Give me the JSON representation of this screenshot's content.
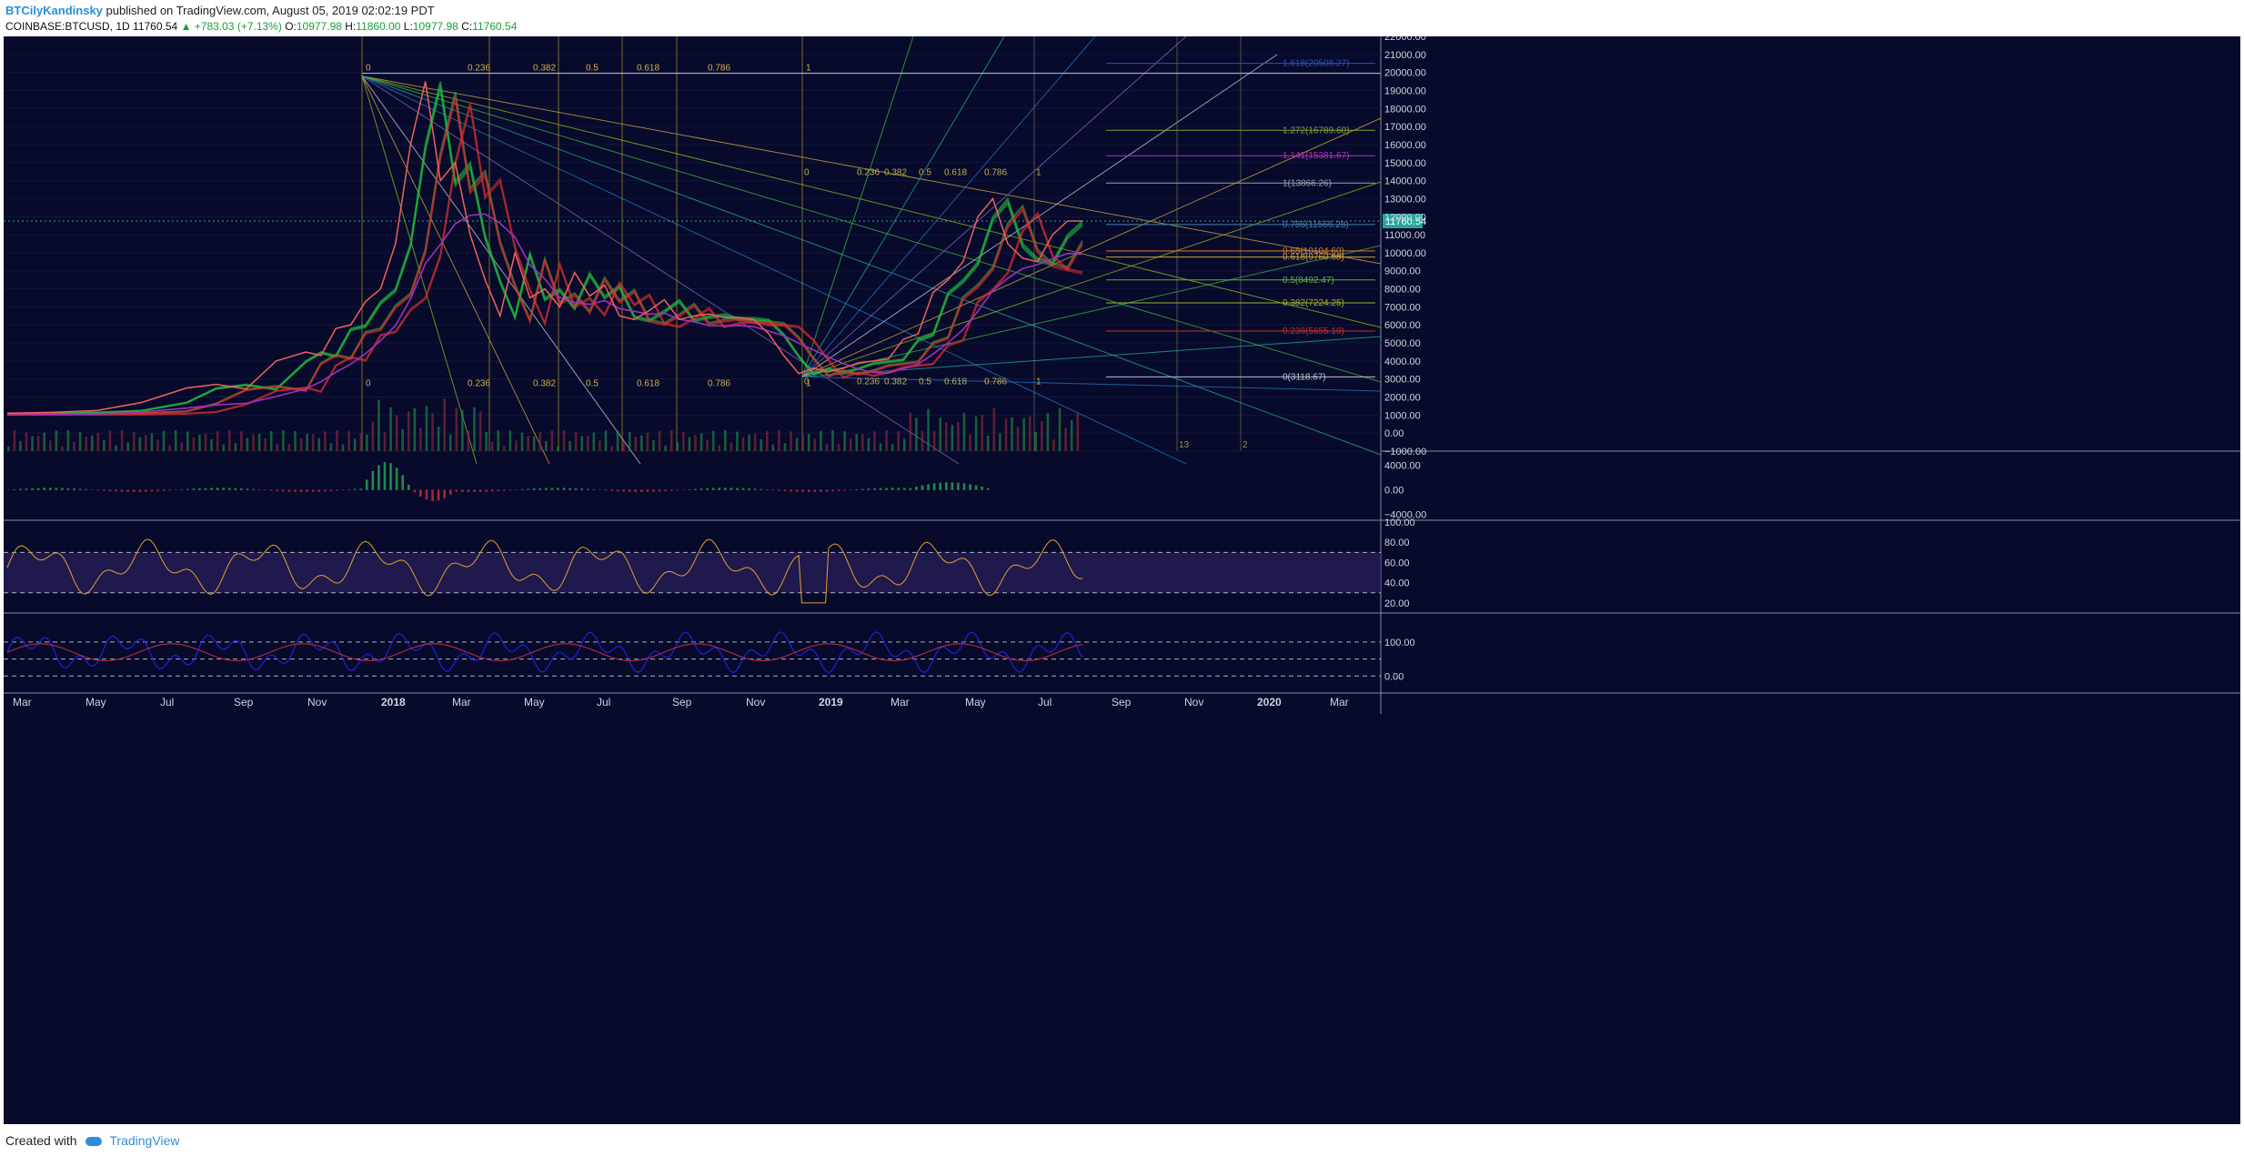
{
  "header": {
    "author": "BTCilyKandinsky",
    "published_text": "published on TradingView.com, August 05, 2019 02:02:19 PDT",
    "symbol": "COINBASE:BTCUSD, 1D",
    "last": "11760.54",
    "change": "▲ +783.03 (+7.13%)",
    "open_label": "O:",
    "open": "10977.98",
    "high_label": "H:",
    "high": "11860.00",
    "low_label": "L:",
    "low": "10977.98",
    "close_label": "C:",
    "close": "11760.54"
  },
  "footer": {
    "created_with": "Created with",
    "brand": "TradingView"
  },
  "colors": {
    "background": "#070a2a",
    "price_tag": "#26a69a",
    "rsi_line": "#e0a030",
    "rsi_band": "#2a1f5c",
    "cci_line": "#2020e0",
    "cci_signal": "#c03040"
  },
  "chart_data": {
    "type": "line",
    "title": "COINBASE:BTCUSD, 1D",
    "x_tick_labels": [
      "Mar",
      "May",
      "Jul",
      "Sep",
      "Nov",
      "2018",
      "Mar",
      "May",
      "Jul",
      "Sep",
      "Nov",
      "2019",
      "Mar",
      "May",
      "Jul",
      "Sep",
      "Nov",
      "2020",
      "Mar"
    ],
    "price_axis_labels": [
      "22000.00",
      "21000.00",
      "20000.00",
      "19000.00",
      "18000.00",
      "17000.00",
      "16000.00",
      "15000.00",
      "14000.00",
      "13000.00",
      "12000.00",
      "11000.00",
      "10000.00",
      "9000.00",
      "8000.00",
      "7000.00",
      "6000.00",
      "5000.00",
      "4000.00",
      "3000.00",
      "2000.00",
      "1000.00",
      "0.00",
      "−1000.00"
    ],
    "ylim": [
      -1000,
      22000
    ],
    "last_price_tag": "11760.54",
    "price_series": {
      "name": "BTCUSD",
      "x_index": [
        0,
        15,
        30,
        45,
        60,
        70,
        80,
        90,
        100,
        105,
        110,
        115,
        120,
        125,
        130,
        135,
        140,
        145,
        150,
        155,
        160,
        165,
        170,
        175,
        180,
        185,
        190,
        195,
        200,
        205,
        210,
        215,
        220,
        225,
        230,
        235,
        240,
        245,
        250,
        255,
        260,
        265,
        270,
        275,
        280,
        285,
        290,
        295,
        300,
        305,
        310,
        315,
        320,
        325,
        330,
        335,
        340,
        345,
        350,
        355,
        360
      ],
      "values": [
        1100,
        1150,
        1250,
        1700,
        2500,
        2700,
        2450,
        4000,
        4500,
        4300,
        5800,
        6000,
        7300,
        8000,
        10500,
        16000,
        19500,
        14000,
        15000,
        11000,
        8500,
        6500,
        10000,
        7500,
        8000,
        7000,
        8900,
        7600,
        8200,
        6500,
        6300,
        6800,
        7400,
        6300,
        6500,
        6600,
        6400,
        6400,
        6300,
        5500,
        4300,
        3300,
        3600,
        3400,
        3600,
        3900,
        4000,
        4100,
        5200,
        5500,
        7800,
        8500,
        9500,
        12000,
        13000,
        10500,
        9700,
        9500,
        11000,
        11760,
        11760
      ],
      "volume_note": "daily volume histogram"
    },
    "fib_levels_right": [
      {
        "label": "1.618(20508.27)",
        "value": 20508.27
      },
      {
        "label": "1.272(16789.60)",
        "value": 16789.6
      },
      {
        "label": "1.141(15381.67)",
        "value": 15381.67
      },
      {
        "label": "1(13866.26)",
        "value": 13866.26
      },
      {
        "label": "0.786(11566.28)",
        "value": 11566.28
      },
      {
        "label": "0.65(10104.60)",
        "value": 10104.6
      },
      {
        "label": "0.618(9760.68)",
        "value": 9760.68
      },
      {
        "label": "0.5(8492.47)",
        "value": 8492.47
      },
      {
        "label": "0.382(7224.25)",
        "value": 7224.25
      },
      {
        "label": "0.236(5655.10)",
        "value": 5655.1
      },
      {
        "label": "0(3118.67)",
        "value": 3118.67
      }
    ],
    "fib_time_labels": [
      "0",
      "0.236",
      "0.382",
      "0.5",
      "0.618",
      "0.786",
      "1"
    ],
    "fib_time_numbers": [
      "13",
      "2"
    ],
    "fib_fan_labels": [
      "0.236",
      "0.382",
      "0.5",
      "0.618",
      "0.786"
    ],
    "macd": {
      "axis_labels": [
        "4000.00",
        "0.00",
        "−4000.00"
      ],
      "ylim": [
        -5000,
        6000
      ]
    },
    "rsi": {
      "axis_labels": [
        "100.00",
        "80.00",
        "60.00",
        "40.00",
        "20.00"
      ],
      "ylim": [
        10,
        100
      ],
      "band": [
        30,
        70
      ]
    },
    "cci": {
      "axis_labels": [
        "100.00",
        "0.00"
      ],
      "ylim": [
        -50,
        180
      ],
      "lines": [
        100,
        50,
        0
      ]
    }
  }
}
